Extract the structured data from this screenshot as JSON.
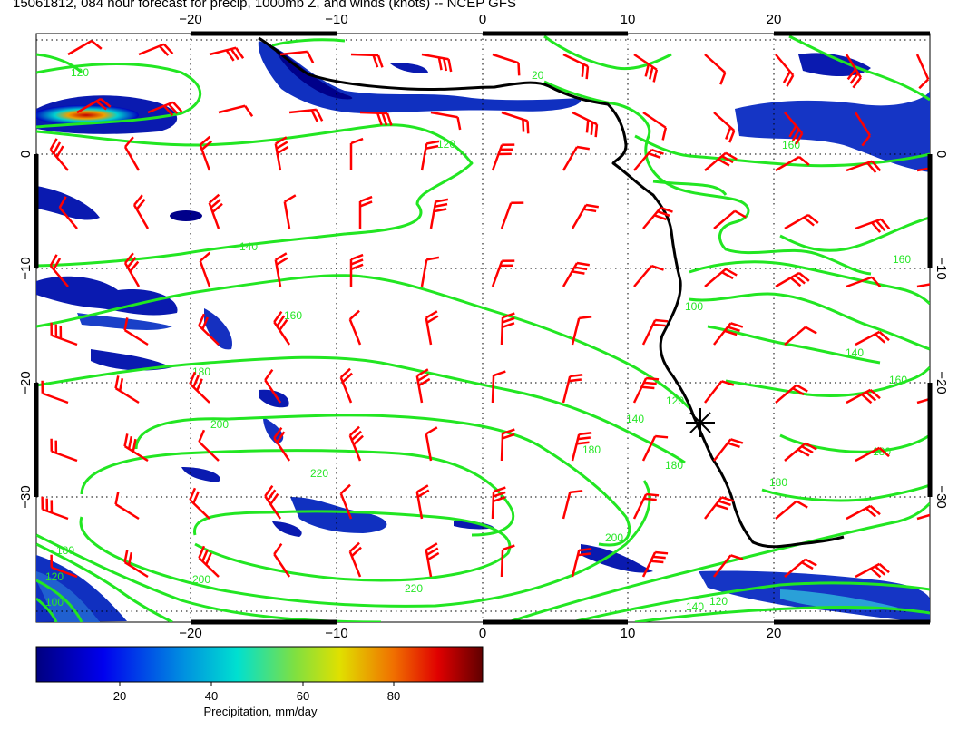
{
  "title": "15061812, 084 hour forecast for precip, 1000mb Z, and winds (knots) -- NCEP GFS",
  "map": {
    "lon_ticks": [
      "−20",
      "−10",
      "0",
      "10",
      "20"
    ],
    "lat_ticks": [
      "0",
      "−10",
      "−20",
      "−30"
    ],
    "gridlines": "dotted",
    "colors": {
      "contour": "#22e622",
      "barb": "#ff0000",
      "coast": "#000000",
      "precip_low": "#00008b",
      "precip_high": "#7a0000"
    },
    "contour_labels": [
      "120",
      "120",
      "140",
      "160",
      "180",
      "200",
      "220",
      "120",
      "140",
      "180",
      "200",
      "220",
      "180",
      "200",
      "120",
      "100",
      "140",
      "160",
      "180",
      "180",
      "120",
      "140",
      "160",
      "180",
      "100",
      "160",
      "20"
    ],
    "station_marker": "asterisk-icon"
  },
  "colorbar": {
    "ticks": [
      "20",
      "40",
      "60",
      "80"
    ],
    "label": "Precipitation, mm/day",
    "range": [
      0,
      98
    ]
  }
}
